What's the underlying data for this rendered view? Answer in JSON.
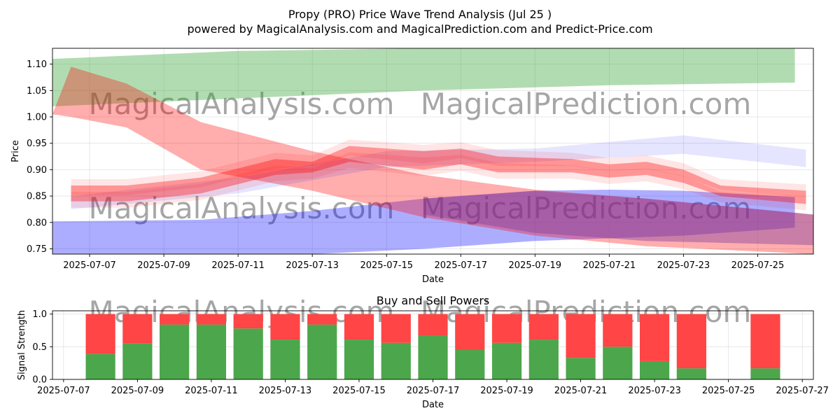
{
  "title_line1": "Propy (PRO) Price Wave Trend Analysis (Jul 25 )",
  "title_line2": "powered by MagicalAnalysis.com and MagicalPrediction.com and Predict-Price.com",
  "watermarks": [
    "MagicalAnalysis.com",
    "MagicalPrediction.com"
  ],
  "chart_data": [
    {
      "type": "area",
      "title": "",
      "xlabel": "Date",
      "ylabel": "Price",
      "ylim": [
        0.74,
        1.13
      ],
      "xlim": [
        "2025-07-06T00:00",
        "2025-07-26T12:00"
      ],
      "grid": true,
      "x_tick_labels": [
        "2025-07-07",
        "2025-07-09",
        "2025-07-11",
        "2025-07-13",
        "2025-07-15",
        "2025-07-17",
        "2025-07-19",
        "2025-07-21",
        "2025-07-23",
        "2025-07-25"
      ],
      "y_tick_labels": [
        "0.75",
        "0.80",
        "0.85",
        "0.90",
        "0.95",
        "1.00",
        "1.05",
        "1.10"
      ],
      "bands": [
        {
          "color": "#2ca02c",
          "opacity": 0.37,
          "x": [
            "2025-07-06",
            "2025-07-11",
            "2025-07-16",
            "2025-07-21",
            "2025-07-26"
          ],
          "upper": [
            1.11,
            1.125,
            1.13,
            1.13,
            1.13
          ],
          "lower": [
            1.02,
            1.035,
            1.05,
            1.06,
            1.065
          ]
        },
        {
          "color": "#0000ff",
          "opacity": 0.32,
          "x": [
            "2025-07-06",
            "2025-07-10",
            "2025-07-13",
            "2025-07-16",
            "2025-07-19",
            "2025-07-21",
            "2025-07-23",
            "2025-07-26"
          ],
          "upper": [
            0.802,
            0.805,
            0.822,
            0.845,
            0.86,
            0.862,
            0.86,
            0.848
          ],
          "lower": [
            0.74,
            0.74,
            0.74,
            0.75,
            0.765,
            0.77,
            0.775,
            0.79
          ]
        },
        {
          "color": "#ff0000",
          "opacity": 0.32,
          "x": [
            "2025-07-06",
            "2025-07-06.5",
            "2025-07-08",
            "2025-07-10",
            "2025-07-13",
            "2025-07-16",
            "2025-07-19",
            "2025-07-22",
            "2025-07-26.5"
          ],
          "upper": [
            1.005,
            1.095,
            1.063,
            0.99,
            0.935,
            0.89,
            0.862,
            0.845,
            0.815
          ],
          "lower": [
            1.005,
            1.0,
            0.98,
            0.9,
            0.86,
            0.81,
            0.775,
            0.755,
            0.74
          ]
        },
        {
          "color": "#7b3fa0",
          "opacity": 0.42,
          "x": [
            "2025-07-16",
            "2025-07-19",
            "2025-07-22",
            "2025-07-26.5"
          ],
          "upper": [
            0.845,
            0.86,
            0.845,
            0.815
          ],
          "lower": [
            0.815,
            0.78,
            0.765,
            0.757
          ]
        },
        {
          "color": "#0000ff",
          "opacity": 0.1,
          "x": [
            "2025-07-06.5",
            "2025-07-11",
            "2025-07-15",
            "2025-07-19",
            "2025-07-23",
            "2025-07-26.3"
          ],
          "upper": [
            0.85,
            0.885,
            0.935,
            0.94,
            0.965,
            0.938
          ],
          "lower": [
            0.825,
            0.855,
            0.905,
            0.915,
            0.93,
            0.905
          ]
        },
        {
          "color": "#ff0000",
          "opacity": 0.35,
          "x": [
            "2025-07-06.5",
            "2025-07-08",
            "2025-07-10",
            "2025-07-12",
            "2025-07-13",
            "2025-07-14",
            "2025-07-16",
            "2025-07-17",
            "2025-07-18",
            "2025-07-20",
            "2025-07-21",
            "2025-07-22",
            "2025-07-23",
            "2025-07-24",
            "2025-07-26.3"
          ],
          "upper": [
            0.87,
            0.87,
            0.885,
            0.92,
            0.915,
            0.945,
            0.935,
            0.94,
            0.925,
            0.92,
            0.91,
            0.915,
            0.9,
            0.87,
            0.86
          ],
          "lower": [
            0.84,
            0.84,
            0.855,
            0.89,
            0.895,
            0.915,
            0.9,
            0.91,
            0.895,
            0.895,
            0.885,
            0.89,
            0.875,
            0.85,
            0.835
          ]
        }
      ]
    },
    {
      "type": "bar",
      "title": "Buy and Sell Powers",
      "xlabel": "Date",
      "ylabel": "Signal Strength",
      "ylim": [
        0,
        1.05
      ],
      "xlim": [
        "2025-07-06.7",
        "2025-07-27.3"
      ],
      "grid": true,
      "x_tick_labels": [
        "2025-07-07",
        "2025-07-09",
        "2025-07-11",
        "2025-07-13",
        "2025-07-15",
        "2025-07-17",
        "2025-07-19",
        "2025-07-21",
        "2025-07-23",
        "2025-07-25",
        "2025-07-27"
      ],
      "y_tick_labels": [
        "0.0",
        "0.5",
        "1.0"
      ],
      "categories": [
        "2025-07-08",
        "2025-07-09",
        "2025-07-10",
        "2025-07-11",
        "2025-07-12",
        "2025-07-13",
        "2025-07-14",
        "2025-07-15",
        "2025-07-16",
        "2025-07-17",
        "2025-07-18",
        "2025-07-19",
        "2025-07-20",
        "2025-07-21",
        "2025-07-22",
        "2025-07-23",
        "2025-07-24",
        "2025-07-26"
      ],
      "series": [
        {
          "color": "#4ca64c",
          "values": [
            0.39,
            0.55,
            0.84,
            0.84,
            0.78,
            0.61,
            0.84,
            0.61,
            0.56,
            0.67,
            0.45,
            0.56,
            0.61,
            0.33,
            0.5,
            0.28,
            0.17,
            0.17
          ]
        },
        {
          "color": "#ff4545",
          "values": [
            0.61,
            0.45,
            0.16,
            0.16,
            0.22,
            0.39,
            0.16,
            0.39,
            0.44,
            0.33,
            0.55,
            0.44,
            0.39,
            0.67,
            0.5,
            0.72,
            0.83,
            0.83
          ]
        }
      ]
    }
  ]
}
